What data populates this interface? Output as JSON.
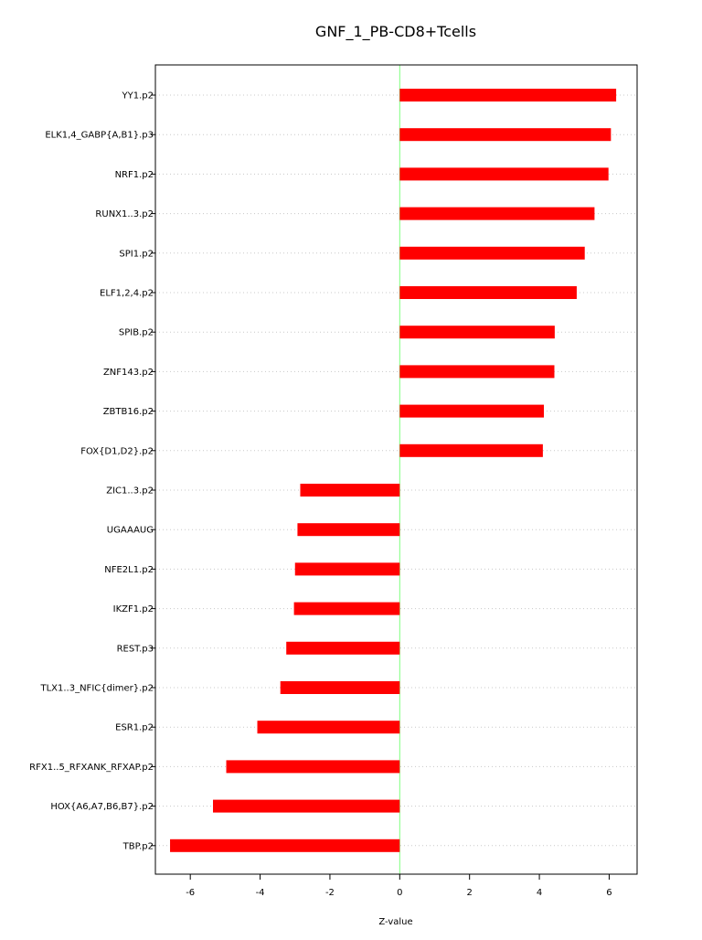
{
  "chart_data": {
    "type": "bar",
    "orientation": "horizontal",
    "title": "GNF_1_PB-CD8+Tcells",
    "xlabel": "Z-value",
    "ylabel": "",
    "xlim": [
      -7.0,
      6.8
    ],
    "xticks": [
      -6,
      -4,
      -2,
      0,
      2,
      4,
      6
    ],
    "grid": "horizontal-dotted",
    "zero_line_color": "#7fff7f",
    "bar_color": "#ff0000",
    "categories": [
      "YY1.p2",
      "ELK1,4_GABP{A,B1}.p3",
      "NRF1.p2",
      "RUNX1..3.p2",
      "SPI1.p2",
      "ELF1,2,4.p2",
      "SPIB.p2",
      "ZNF143.p2",
      "ZBTB16.p2",
      "FOX{D1,D2}.p2",
      "ZIC1..3.p2",
      "UGAAAUG",
      "NFE2L1.p2",
      "IKZF1.p2",
      "REST.p3",
      "TLX1..3_NFIC{dimer}.p2",
      "ESR1.p2",
      "RFX1..5_RFXANK_RFXAP.p2",
      "HOX{A6,A7,B6,B7}.p2",
      "TBP.p2"
    ],
    "values": [
      6.2,
      6.05,
      5.98,
      5.58,
      5.3,
      5.07,
      4.44,
      4.43,
      4.13,
      4.1,
      -2.85,
      -2.93,
      -3.0,
      -3.03,
      -3.25,
      -3.42,
      -4.08,
      -4.97,
      -5.35,
      -6.58
    ]
  }
}
